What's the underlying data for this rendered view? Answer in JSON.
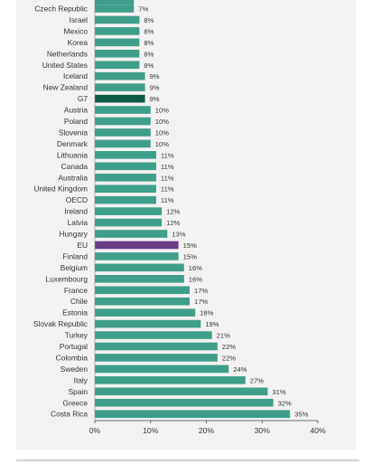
{
  "chart_data": {
    "type": "bar",
    "orientation": "horizontal",
    "categories": [
      "Czech Republic",
      "Israel",
      "Mexico",
      "Korea",
      "Netherlands",
      "United States",
      "Iceland",
      "New Zealand",
      "G7",
      "Austria",
      "Poland",
      "Slovenia",
      "Denmark",
      "Lithuania",
      "Canada",
      "Australia",
      "United Kingdom",
      "OECD",
      "Ireland",
      "Latvia",
      "Hungary",
      "EU",
      "Finland",
      "Belgium",
      "Luxembourg",
      "France",
      "Chile",
      "Estonia",
      "Slovak Republic",
      "Turkey",
      "Portugal",
      "Colombia",
      "Sweden",
      "Italy",
      "Spain",
      "Greece",
      "Costa Rica"
    ],
    "values": [
      7,
      8,
      8,
      8,
      8,
      8,
      9,
      9,
      9,
      10,
      10,
      10,
      10,
      11,
      11,
      11,
      11,
      11,
      12,
      12,
      13,
      15,
      15,
      16,
      16,
      17,
      17,
      18,
      19,
      21,
      22,
      22,
      24,
      27,
      31,
      32,
      35
    ],
    "value_labels": [
      "7%",
      "8%",
      "8%",
      "8%",
      "8%",
      "8%",
      "9%",
      "9%",
      "9%",
      "10%",
      "10%",
      "10%",
      "10%",
      "11%",
      "11%",
      "11%",
      "11%",
      "11%",
      "12%",
      "12%",
      "13%",
      "15%",
      "15%",
      "16%",
      "16%",
      "17%",
      "17%",
      "18%",
      "19%",
      "21%",
      "22%",
      "22%",
      "24%",
      "27%",
      "31%",
      "32%",
      "35%"
    ],
    "xlim": [
      0,
      40
    ],
    "xticks": [
      "0%",
      "10%",
      "20%",
      "30%",
      "40%"
    ],
    "highlight": {
      "G7": "#0b5a46",
      "EU": "#6a3a85"
    },
    "bar_color": "#3f9e8a",
    "grid": false
  }
}
